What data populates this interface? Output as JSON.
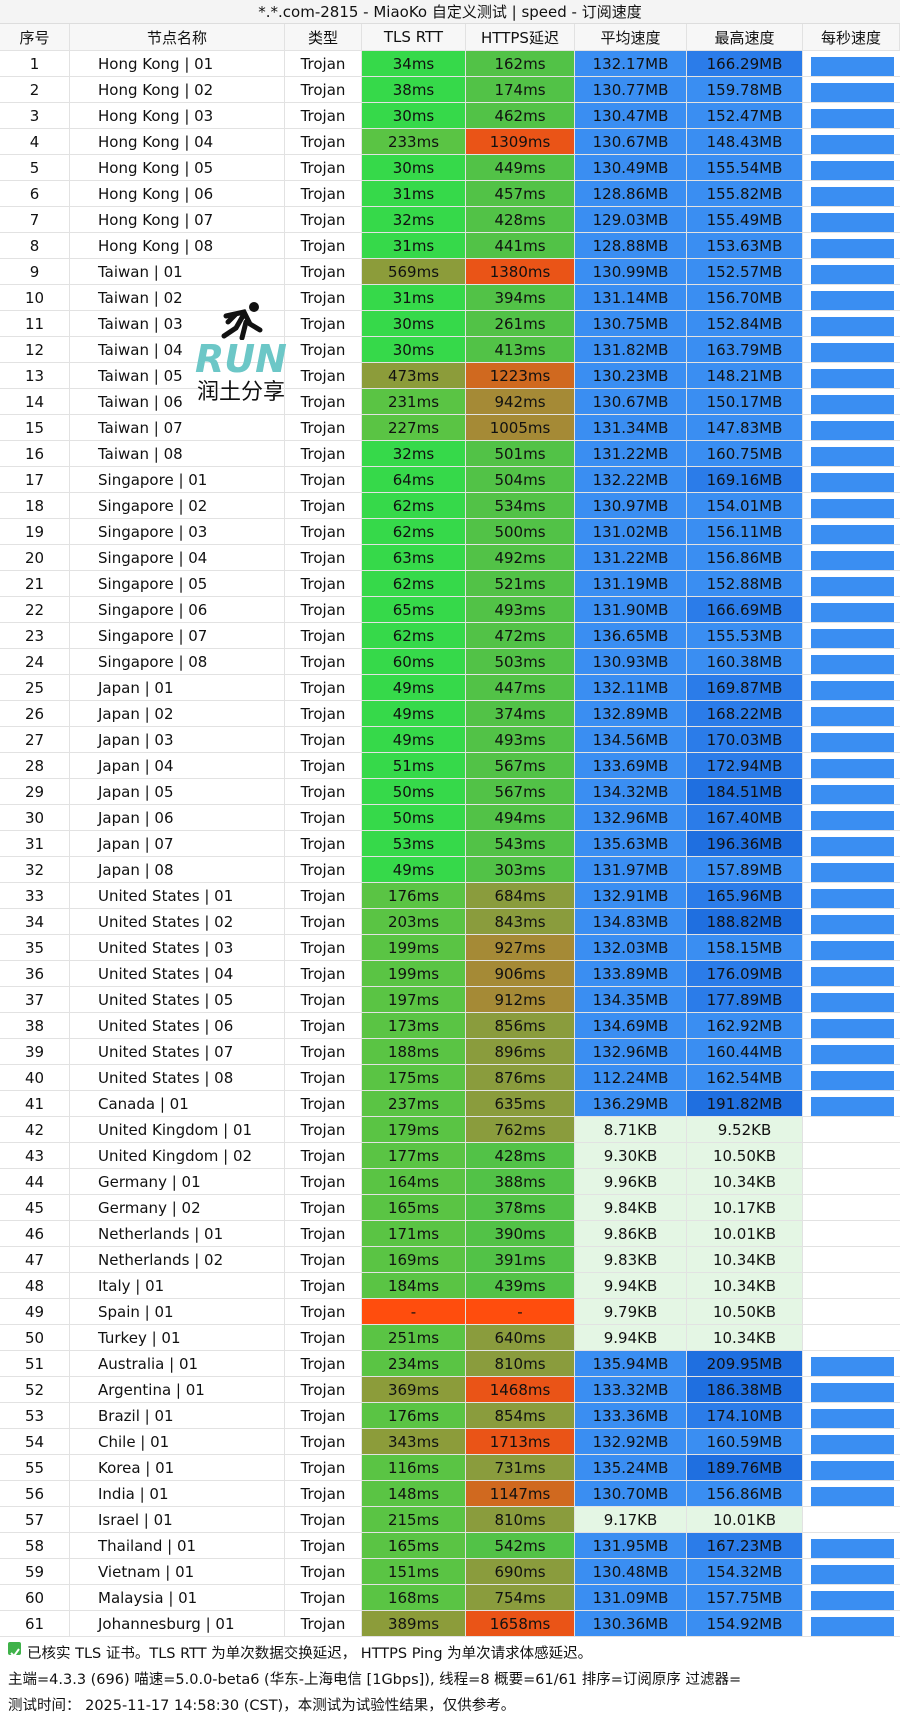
{
  "header": {
    "title": "*.*.com-2815 - MiaoKo 自定义测试 | speed - 订阅速度"
  },
  "logo": {
    "text": "RUN",
    "caption": "润土分享"
  },
  "table": {
    "columns": [
      "序号",
      "节点名称",
      "类型",
      "TLS RTT",
      "HTTPS延迟",
      "平均速度",
      "最高速度",
      "每秒速度"
    ],
    "rows": [
      [
        "1",
        "Hong Kong | 01",
        "Trojan",
        "34ms",
        "162ms",
        "132.17MB",
        "166.29MB"
      ],
      [
        "2",
        "Hong Kong | 02",
        "Trojan",
        "38ms",
        "174ms",
        "130.77MB",
        "159.78MB"
      ],
      [
        "3",
        "Hong Kong | 03",
        "Trojan",
        "30ms",
        "462ms",
        "130.47MB",
        "152.47MB"
      ],
      [
        "4",
        "Hong Kong | 04",
        "Trojan",
        "233ms",
        "1309ms",
        "130.67MB",
        "148.43MB"
      ],
      [
        "5",
        "Hong Kong | 05",
        "Trojan",
        "30ms",
        "449ms",
        "130.49MB",
        "155.54MB"
      ],
      [
        "6",
        "Hong Kong | 06",
        "Trojan",
        "31ms",
        "457ms",
        "128.86MB",
        "155.82MB"
      ],
      [
        "7",
        "Hong Kong | 07",
        "Trojan",
        "32ms",
        "428ms",
        "129.03MB",
        "155.49MB"
      ],
      [
        "8",
        "Hong Kong | 08",
        "Trojan",
        "31ms",
        "441ms",
        "128.88MB",
        "153.63MB"
      ],
      [
        "9",
        "Taiwan | 01",
        "Trojan",
        "569ms",
        "1380ms",
        "130.99MB",
        "152.57MB"
      ],
      [
        "10",
        "Taiwan | 02",
        "Trojan",
        "31ms",
        "394ms",
        "131.14MB",
        "156.70MB"
      ],
      [
        "11",
        "Taiwan | 03",
        "Trojan",
        "30ms",
        "261ms",
        "130.75MB",
        "152.84MB"
      ],
      [
        "12",
        "Taiwan | 04",
        "Trojan",
        "30ms",
        "413ms",
        "131.82MB",
        "163.79MB"
      ],
      [
        "13",
        "Taiwan | 05",
        "Trojan",
        "473ms",
        "1223ms",
        "130.23MB",
        "148.21MB"
      ],
      [
        "14",
        "Taiwan | 06",
        "Trojan",
        "231ms",
        "942ms",
        "130.67MB",
        "150.17MB"
      ],
      [
        "15",
        "Taiwan | 07",
        "Trojan",
        "227ms",
        "1005ms",
        "131.34MB",
        "147.83MB"
      ],
      [
        "16",
        "Taiwan | 08",
        "Trojan",
        "32ms",
        "501ms",
        "131.22MB",
        "160.75MB"
      ],
      [
        "17",
        "Singapore | 01",
        "Trojan",
        "64ms",
        "504ms",
        "132.22MB",
        "169.16MB"
      ],
      [
        "18",
        "Singapore | 02",
        "Trojan",
        "62ms",
        "534ms",
        "130.97MB",
        "154.01MB"
      ],
      [
        "19",
        "Singapore | 03",
        "Trojan",
        "62ms",
        "500ms",
        "131.02MB",
        "156.11MB"
      ],
      [
        "20",
        "Singapore | 04",
        "Trojan",
        "63ms",
        "492ms",
        "131.22MB",
        "156.86MB"
      ],
      [
        "21",
        "Singapore | 05",
        "Trojan",
        "62ms",
        "521ms",
        "131.19MB",
        "152.88MB"
      ],
      [
        "22",
        "Singapore | 06",
        "Trojan",
        "65ms",
        "493ms",
        "131.90MB",
        "166.69MB"
      ],
      [
        "23",
        "Singapore | 07",
        "Trojan",
        "62ms",
        "472ms",
        "136.65MB",
        "155.53MB"
      ],
      [
        "24",
        "Singapore | 08",
        "Trojan",
        "60ms",
        "503ms",
        "130.93MB",
        "160.38MB"
      ],
      [
        "25",
        "Japan | 01",
        "Trojan",
        "49ms",
        "447ms",
        "132.11MB",
        "169.87MB"
      ],
      [
        "26",
        "Japan | 02",
        "Trojan",
        "49ms",
        "374ms",
        "132.89MB",
        "168.22MB"
      ],
      [
        "27",
        "Japan | 03",
        "Trojan",
        "49ms",
        "493ms",
        "134.56MB",
        "170.03MB"
      ],
      [
        "28",
        "Japan | 04",
        "Trojan",
        "51ms",
        "567ms",
        "133.69MB",
        "172.94MB"
      ],
      [
        "29",
        "Japan | 05",
        "Trojan",
        "50ms",
        "567ms",
        "134.32MB",
        "184.51MB"
      ],
      [
        "30",
        "Japan | 06",
        "Trojan",
        "50ms",
        "494ms",
        "132.96MB",
        "167.40MB"
      ],
      [
        "31",
        "Japan | 07",
        "Trojan",
        "53ms",
        "543ms",
        "135.63MB",
        "196.36MB"
      ],
      [
        "32",
        "Japan | 08",
        "Trojan",
        "49ms",
        "303ms",
        "131.97MB",
        "157.89MB"
      ],
      [
        "33",
        "United States | 01",
        "Trojan",
        "176ms",
        "684ms",
        "132.91MB",
        "165.96MB"
      ],
      [
        "34",
        "United States | 02",
        "Trojan",
        "203ms",
        "843ms",
        "134.83MB",
        "188.82MB"
      ],
      [
        "35",
        "United States | 03",
        "Trojan",
        "199ms",
        "927ms",
        "132.03MB",
        "158.15MB"
      ],
      [
        "36",
        "United States | 04",
        "Trojan",
        "199ms",
        "906ms",
        "133.89MB",
        "176.09MB"
      ],
      [
        "37",
        "United States | 05",
        "Trojan",
        "197ms",
        "912ms",
        "134.35MB",
        "177.89MB"
      ],
      [
        "38",
        "United States | 06",
        "Trojan",
        "173ms",
        "856ms",
        "134.69MB",
        "162.92MB"
      ],
      [
        "39",
        "United States | 07",
        "Trojan",
        "188ms",
        "896ms",
        "132.96MB",
        "160.44MB"
      ],
      [
        "40",
        "United States | 08",
        "Trojan",
        "175ms",
        "876ms",
        "112.24MB",
        "162.54MB"
      ],
      [
        "41",
        "Canada | 01",
        "Trojan",
        "237ms",
        "635ms",
        "136.29MB",
        "191.82MB"
      ],
      [
        "42",
        "United Kingdom | 01",
        "Trojan",
        "179ms",
        "762ms",
        "8.71KB",
        "9.52KB"
      ],
      [
        "43",
        "United Kingdom | 02",
        "Trojan",
        "177ms",
        "428ms",
        "9.30KB",
        "10.50KB"
      ],
      [
        "44",
        "Germany | 01",
        "Trojan",
        "164ms",
        "388ms",
        "9.96KB",
        "10.34KB"
      ],
      [
        "45",
        "Germany | 02",
        "Trojan",
        "165ms",
        "378ms",
        "9.84KB",
        "10.17KB"
      ],
      [
        "46",
        "Netherlands | 01",
        "Trojan",
        "171ms",
        "390ms",
        "9.86KB",
        "10.01KB"
      ],
      [
        "47",
        "Netherlands | 02",
        "Trojan",
        "169ms",
        "391ms",
        "9.83KB",
        "10.34KB"
      ],
      [
        "48",
        "Italy | 01",
        "Trojan",
        "184ms",
        "439ms",
        "9.94KB",
        "10.34KB"
      ],
      [
        "49",
        "Spain | 01",
        "Trojan",
        "-",
        "-",
        "9.79KB",
        "10.50KB"
      ],
      [
        "50",
        "Turkey | 01",
        "Trojan",
        "251ms",
        "640ms",
        "9.94KB",
        "10.34KB"
      ],
      [
        "51",
        "Australia | 01",
        "Trojan",
        "234ms",
        "810ms",
        "135.94MB",
        "209.95MB"
      ],
      [
        "52",
        "Argentina | 01",
        "Trojan",
        "369ms",
        "1468ms",
        "133.32MB",
        "186.38MB"
      ],
      [
        "53",
        "Brazil | 01",
        "Trojan",
        "176ms",
        "854ms",
        "133.36MB",
        "174.10MB"
      ],
      [
        "54",
        "Chile | 01",
        "Trojan",
        "343ms",
        "1713ms",
        "132.92MB",
        "160.59MB"
      ],
      [
        "55",
        "Korea | 01",
        "Trojan",
        "116ms",
        "731ms",
        "135.24MB",
        "189.76MB"
      ],
      [
        "56",
        "India | 01",
        "Trojan",
        "148ms",
        "1147ms",
        "130.70MB",
        "156.86MB"
      ],
      [
        "57",
        "Israel | 01",
        "Trojan",
        "215ms",
        "810ms",
        "9.17KB",
        "10.01KB"
      ],
      [
        "58",
        "Thailand | 01",
        "Trojan",
        "165ms",
        "542ms",
        "131.95MB",
        "167.23MB"
      ],
      [
        "59",
        "Vietnam | 01",
        "Trojan",
        "151ms",
        "690ms",
        "130.48MB",
        "154.32MB"
      ],
      [
        "60",
        "Malaysia | 01",
        "Trojan",
        "168ms",
        "754ms",
        "131.09MB",
        "157.75MB"
      ],
      [
        "61",
        "Johannesburg | 01",
        "Trojan",
        "389ms",
        "1658ms",
        "130.36MB",
        "154.92MB"
      ]
    ]
  },
  "footer": {
    "lines": [
      "已核实 TLS 证书。TLS RTT 为单次数据交换延迟， HTTPS Ping 为单次请求体感延迟。",
      "主端=4.3.3 (696) 喵速=5.0.0-beta6 (华东-上海电信 [1Gbps]), 线程=8 概要=61/61 排序=订阅原序 过滤器=",
      "测试时间： 2025-11-17 14:58:30 (CST)，本测试为试验性结果，仅供参考。"
    ]
  }
}
